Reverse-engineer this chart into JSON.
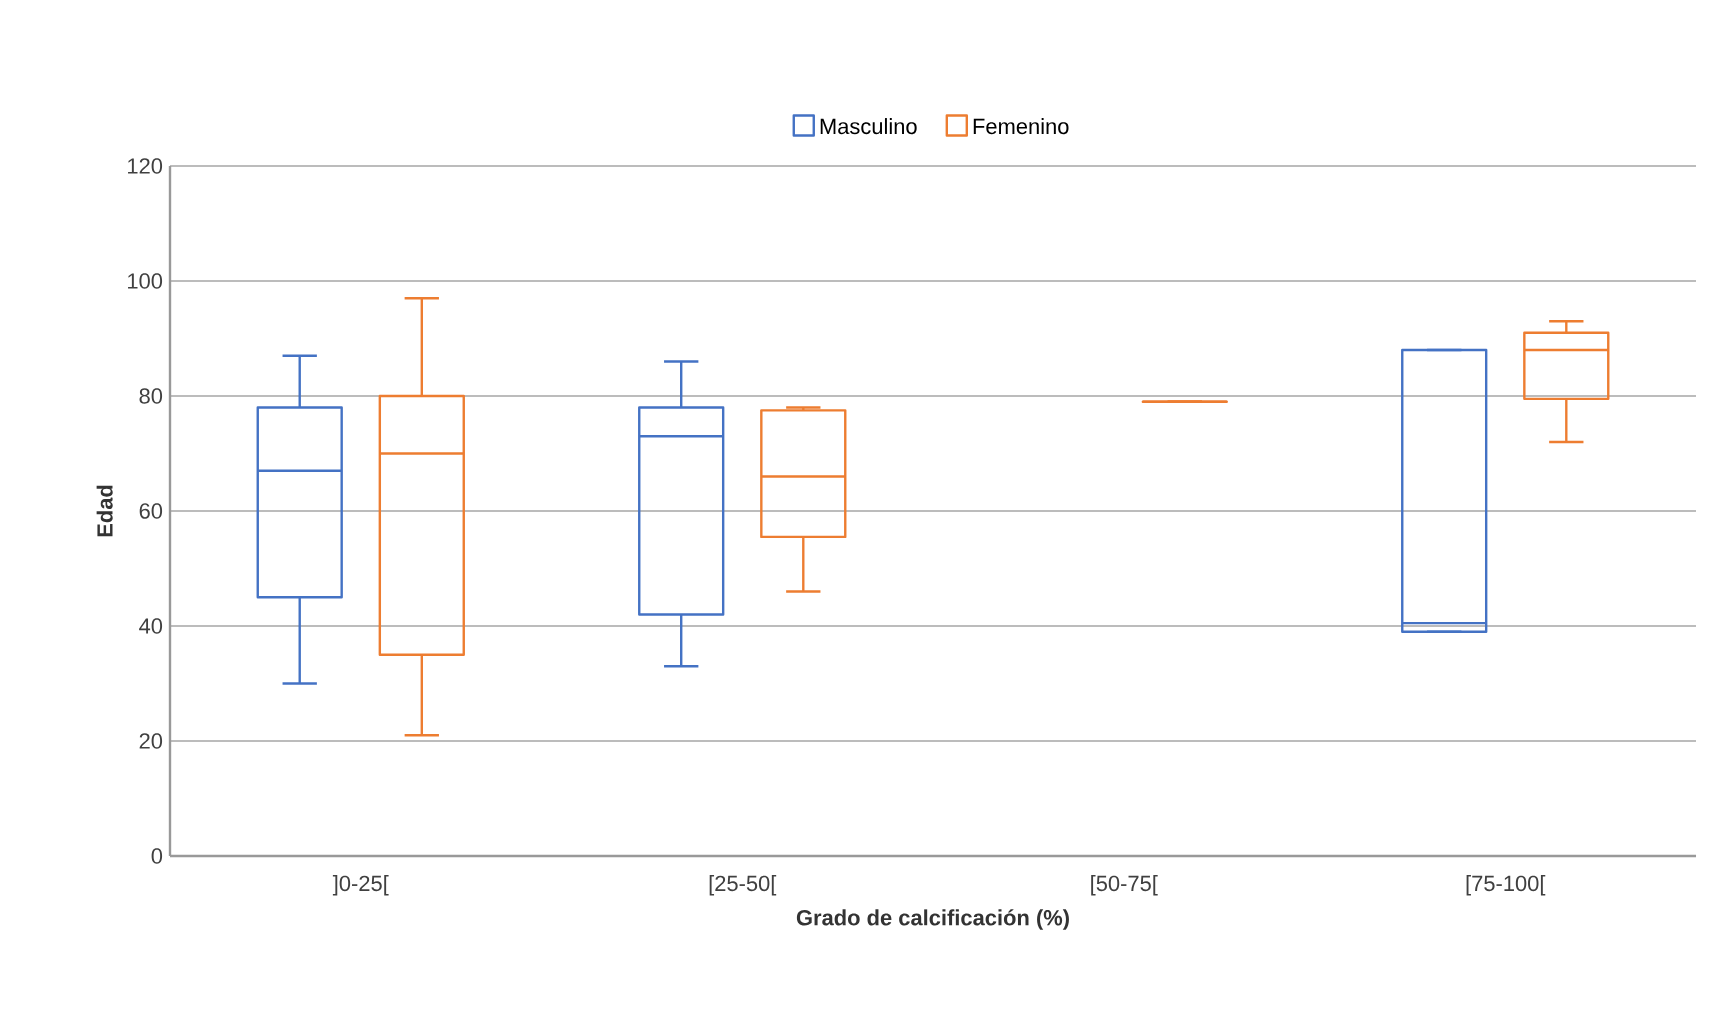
{
  "chart_data": {
    "type": "box",
    "xlabel": "Grado de calcificación (%)",
    "ylabel": "Edad",
    "categories": [
      "]0-25[",
      "[25-50[",
      "[50-75[",
      "[75-100["
    ],
    "series": [
      {
        "name": "Masculino",
        "color": "#4472c4",
        "boxes": [
          {
            "low": 30,
            "q1": 45,
            "median": 67,
            "q3": 78,
            "high": 87
          },
          {
            "low": 33,
            "q1": 42,
            "median": 73,
            "q3": 78,
            "high": 86
          },
          null,
          {
            "low": 39,
            "q1": 39,
            "median": 40.5,
            "q3": 88,
            "high": 88
          }
        ]
      },
      {
        "name": "Femenino",
        "color": "#ed7d31",
        "boxes": [
          {
            "low": 21,
            "q1": 35,
            "median": 70,
            "q3": 80,
            "high": 97
          },
          {
            "low": 46,
            "q1": 55.5,
            "median": 66,
            "q3": 77.5,
            "high": 78
          },
          {
            "low": 79,
            "q1": 79,
            "median": 79,
            "q3": 79,
            "high": 79
          },
          {
            "low": 72,
            "q1": 79.5,
            "median": 88,
            "q3": 91,
            "high": 93
          }
        ]
      }
    ],
    "ylim": [
      0,
      120
    ],
    "yticks": [
      0,
      20,
      40,
      60,
      80,
      100,
      120
    ],
    "grid": "y",
    "legend": "top"
  }
}
